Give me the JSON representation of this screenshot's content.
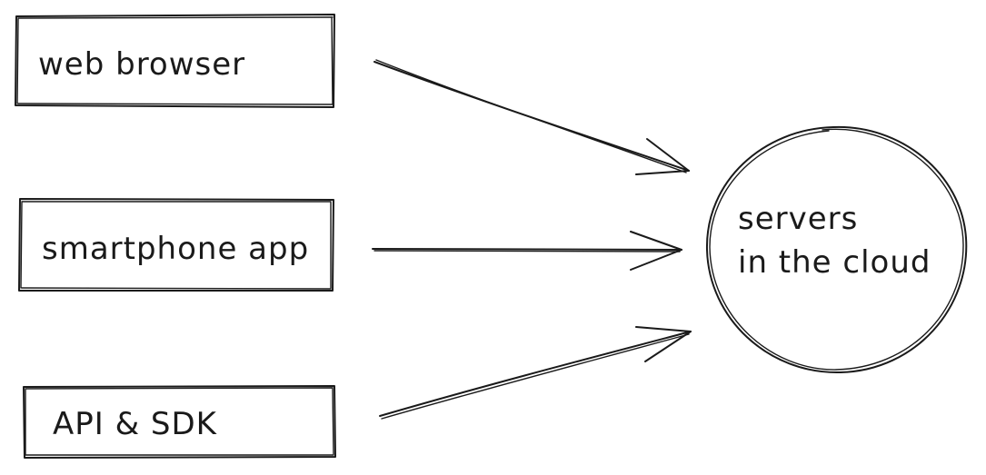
{
  "nodes": {
    "web_browser": "web browser",
    "smartphone_app": "smartphone app",
    "api_sdk": "API & SDK",
    "servers_line1": "servers",
    "servers_line2": "in the cloud"
  },
  "edges": [
    {
      "from": "web browser",
      "to": "servers in the cloud"
    },
    {
      "from": "smartphone app",
      "to": "servers in the cloud"
    },
    {
      "from": "API & SDK",
      "to": "servers in the cloud"
    }
  ]
}
